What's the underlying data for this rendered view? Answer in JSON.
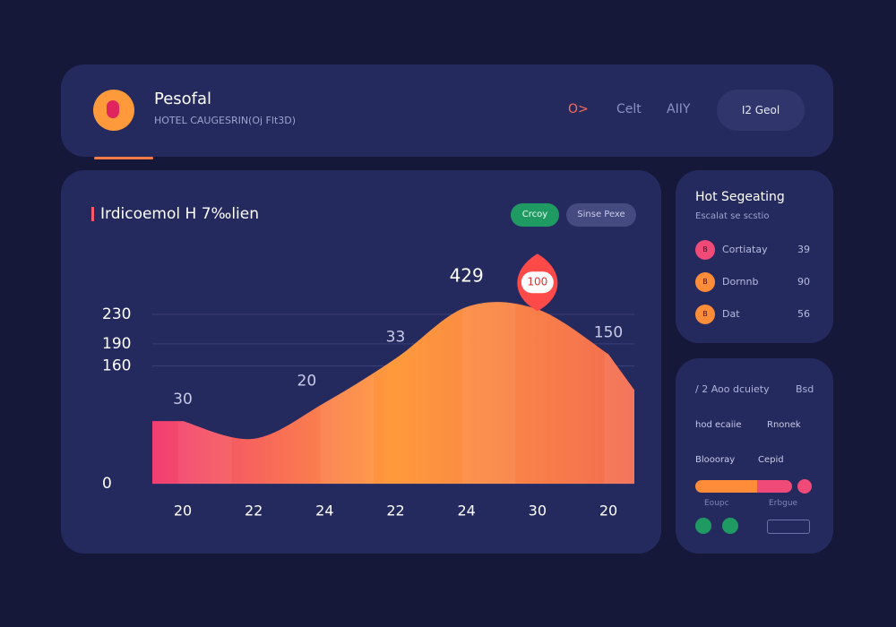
{
  "header": {
    "title": "Pesofal",
    "subtitle": "HOTEL CAUGESRIN(Oj Flt3D)",
    "nav": [
      "O>",
      "Celt",
      "AIIY"
    ],
    "button": "I2 Geol"
  },
  "chart_panel": {
    "title": "Irdicoemol H 7‰lien",
    "buttons": [
      "Crcoy",
      "Sinse Pexe"
    ],
    "annotations": [
      "30",
      "20",
      "33",
      "429",
      "100",
      "150"
    ],
    "chart_data": {
      "type": "area",
      "categories": [
        "20",
        "22",
        "24",
        "22",
        "24",
        "30",
        "20"
      ],
      "values": [
        85,
        61,
        110,
        170,
        240,
        237,
        176
      ],
      "ylim": [
        0,
        230
      ],
      "yticks": [
        0,
        160,
        190,
        230
      ],
      "grid": true,
      "colors": [
        "#f23e73",
        "#ff9a3c",
        "#f36c52"
      ]
    }
  },
  "side_list": {
    "title": "Hot Segeating",
    "subtitle": "Escalat se scstio",
    "items": [
      {
        "icon": "B",
        "label": "Cortiatay",
        "value": "39",
        "color": "#f04a78"
      },
      {
        "icon": "B",
        "label": "Dornnb",
        "value": "90",
        "color": "#ff8c38"
      },
      {
        "icon": "B",
        "label": "Dat",
        "value": "56",
        "color": "#ff8c38"
      }
    ]
  },
  "side_panel": {
    "title": "/ 2 Aoo dcuiety",
    "tag": "Bsd",
    "row1": [
      "hod ecaiie",
      "Rnonek"
    ],
    "row2": [
      "Bloooray",
      "Cepid"
    ],
    "legend": [
      "Eoupc",
      "Erbgue"
    ]
  }
}
